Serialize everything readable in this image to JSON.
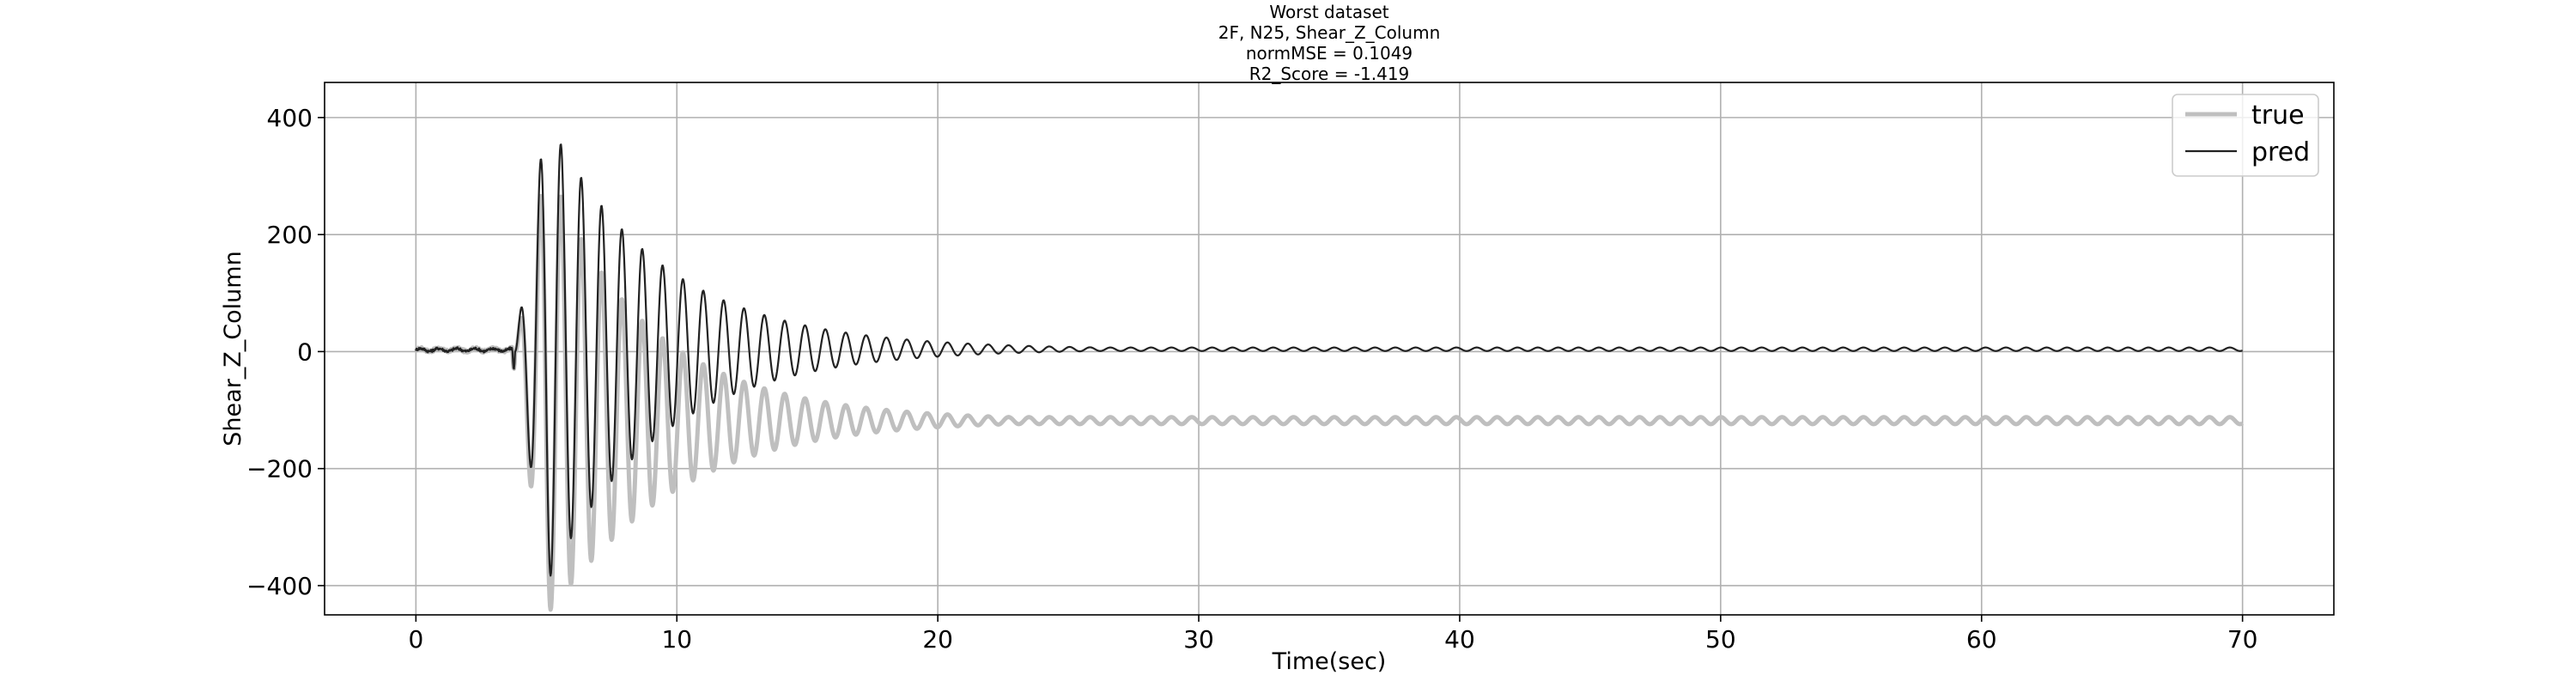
{
  "chart_data": {
    "type": "line",
    "title_lines": [
      "Worst dataset",
      "2F, N25, Shear_Z_Column",
      "normMSE = 0.1049",
      "R2_Score = -1.419"
    ],
    "xlabel": "Time(sec)",
    "ylabel": "Shear_Z_Column",
    "xlim": [
      -3.5,
      73.5
    ],
    "ylim": [
      -450,
      460
    ],
    "xticks": [
      0,
      10,
      20,
      30,
      40,
      50,
      60,
      70
    ],
    "yticks": [
      -400,
      -200,
      0,
      200,
      400
    ],
    "ytick_labels": [
      "−400",
      "−200",
      "0",
      "200",
      "400"
    ],
    "grid": true,
    "legend_position": "top-right",
    "sample_interval_sec": 0.02,
    "series": [
      {
        "name": "true",
        "color": "#bfbfbf",
        "line_width": 5,
        "model": {
          "pre_event_end": 3.7,
          "pre_event_noise": 4,
          "onset": 3.8,
          "peak_time": 5.0,
          "peak_amplitude": 390,
          "period": 0.78,
          "decay_rate": 0.235,
          "final_offset": -118,
          "offset_settle_rate": 0.6,
          "amplitude_floor": 6,
          "end_time": 70
        }
      },
      {
        "name": "pred",
        "color": "#222222",
        "line_width": 2.2,
        "model": {
          "pre_event_end": 3.7,
          "pre_event_noise": 4,
          "onset": 3.8,
          "peak_time": 5.0,
          "peak_amplitude": 400,
          "period": 0.78,
          "decay_rate": 0.23,
          "final_offset": 4,
          "offset_settle_rate": 0.6,
          "amplitude_floor": 3,
          "end_time": 70
        }
      }
    ]
  }
}
